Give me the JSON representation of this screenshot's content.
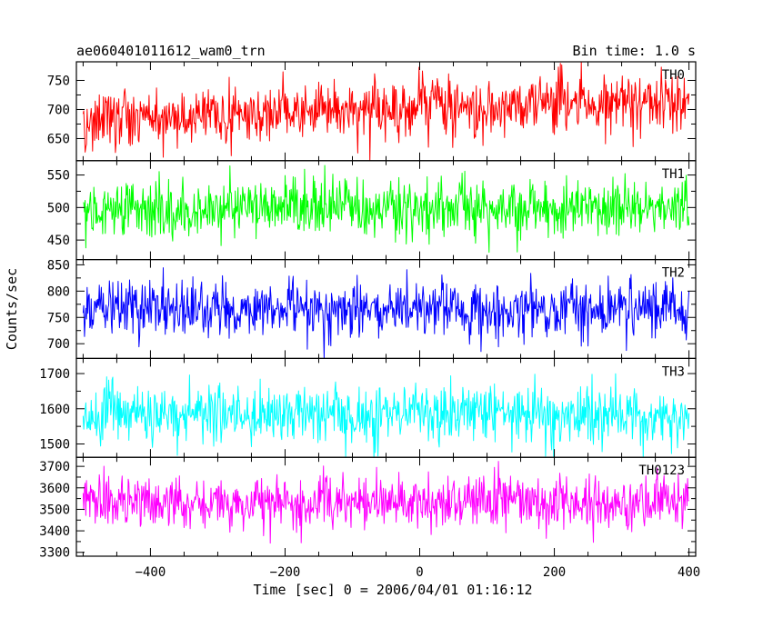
{
  "chart_data": {
    "type": "line",
    "title": "ae060401011612_wam0_trn",
    "subtitle": "Bin time: 1.0 s",
    "xlabel": "Time [sec] 0 = 2006/04/01 01:16:12",
    "ylabel": "Counts/sec",
    "xlim": [
      -510,
      410
    ],
    "x_ticks": [
      -400,
      -200,
      0,
      200,
      400
    ],
    "x_tick_labels": [
      "−400",
      "−200",
      "0",
      "200",
      "400"
    ],
    "x_start": -500,
    "x_end": 400,
    "x_step": 1,
    "grid": false,
    "legend": "none",
    "panels": [
      {
        "name": "TH0",
        "color": "#ff0000",
        "ylim": [
          612,
          782
        ],
        "y_ticks": [
          650,
          700,
          750
        ],
        "y_tick_labels": [
          "650",
          "700",
          "750"
        ],
        "mean_start": 683,
        "mean_end": 718,
        "noise_sd": 26
      },
      {
        "name": "TH1",
        "color": "#00ff00",
        "ylim": [
          420,
          572
        ],
        "y_ticks": [
          450,
          500,
          550
        ],
        "y_tick_labels": [
          "450",
          "500",
          "550"
        ],
        "mean_start": 500,
        "mean_end": 500,
        "noise_sd": 23
      },
      {
        "name": "TH2",
        "color": "#0000ff",
        "ylim": [
          672,
          860
        ],
        "y_ticks": [
          700,
          750,
          800,
          850
        ],
        "y_tick_labels": [
          "700",
          "750",
          "800",
          "850"
        ],
        "mean_start": 768,
        "mean_end": 765,
        "noise_sd": 28
      },
      {
        "name": "TH3",
        "color": "#00ffff",
        "ylim": [
          1462,
          1743
        ],
        "y_ticks": [
          1500,
          1600,
          1700
        ],
        "y_tick_labels": [
          "1500",
          "1600",
          "1700"
        ],
        "mean_start": 1585,
        "mean_end": 1585,
        "noise_sd": 40
      },
      {
        "name": "TH0123",
        "color": "#ff00ff",
        "ylim": [
          3282,
          3742
        ],
        "y_ticks": [
          3300,
          3400,
          3500,
          3600,
          3700
        ],
        "y_tick_labels": [
          "3300",
          "3400",
          "3500",
          "3600",
          "3700"
        ],
        "mean_start": 3535,
        "mean_end": 3535,
        "noise_sd": 62
      }
    ]
  }
}
